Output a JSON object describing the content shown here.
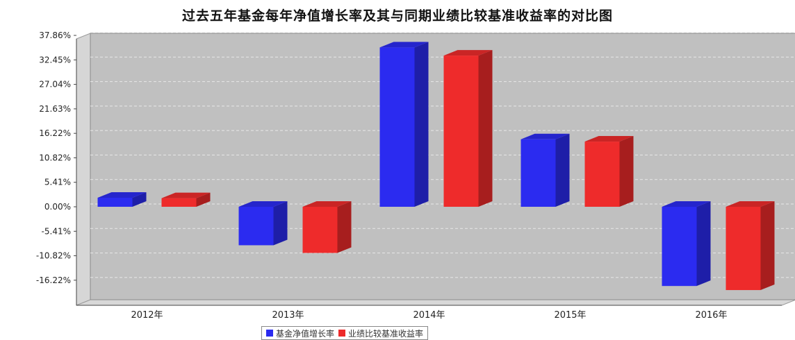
{
  "title": "过去五年基金每年净值增长率及其与同期业绩比较基准收益率的对比图",
  "chart_data": {
    "type": "bar",
    "categories": [
      "2012年",
      "2013年",
      "2014年",
      "2015年",
      "2016年"
    ],
    "series": [
      {
        "name": "基金净值增长率",
        "color": "#2b2bf0",
        "values": [
          2.0,
          -8.5,
          35.2,
          14.9,
          -17.5
        ]
      },
      {
        "name": "业绩比较基准收益率",
        "color": "#ee2b2b",
        "values": [
          1.9,
          -10.2,
          33.4,
          14.4,
          -18.4
        ]
      }
    ],
    "y_ticks": [
      "37.86%",
      "32.45%",
      "27.04%",
      "21.63%",
      "16.22%",
      "10.82%",
      "5.41%",
      "0.00%",
      "-5.41%",
      "-10.82%",
      "-16.22%"
    ],
    "ylim": [
      -20.5,
      37.86
    ],
    "grid": true,
    "legend_position": "bottom-center",
    "three_d": true
  }
}
